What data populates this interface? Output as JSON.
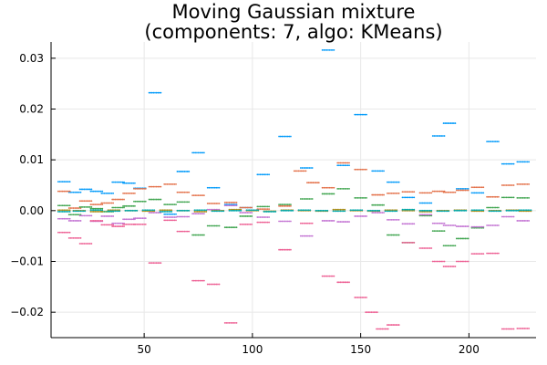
{
  "chart_data": {
    "type": "scatter",
    "title": "Moving Gaussian mixture\n(components: 7, algo: KMeans)",
    "title_lines": [
      "Moving Gaussian mixture",
      "(components: 7, algo: KMeans)"
    ],
    "xlabel": "",
    "ylabel": "",
    "xlim": [
      7,
      231
    ],
    "ylim": [
      -0.025,
      0.0332
    ],
    "xticks": [
      50,
      100,
      150,
      200
    ],
    "xtick_labels": [
      "50",
      "100",
      "150",
      "200"
    ],
    "yticks": [
      -0.02,
      -0.01,
      0.0,
      0.01,
      0.02,
      0.03
    ],
    "ytick_labels": [
      "−0.02",
      "−0.01",
      "0.00",
      "0.01",
      "0.02",
      "0.03"
    ],
    "grid": true,
    "legend": false,
    "marker": "small dot",
    "series": [
      {
        "color": "#009AFA",
        "points": [
          [
            13,
            0.0057
          ],
          [
            18,
            0.0036
          ],
          [
            23,
            0.0042
          ],
          [
            28,
            0.0038
          ],
          [
            33,
            0.0034
          ],
          [
            38,
            0.0056
          ],
          [
            43,
            0.0054
          ],
          [
            48,
            0.0044
          ],
          [
            55,
            0.0232
          ],
          [
            62,
            -0.0007
          ],
          [
            68,
            0.0077
          ],
          [
            75,
            0.0114
          ],
          [
            82,
            0.0045
          ],
          [
            90,
            0.0012
          ],
          [
            97,
            0.0006
          ],
          [
            105,
            0.0071
          ],
          [
            115,
            0.0146
          ],
          [
            125,
            0.0084
          ],
          [
            135,
            0.0316
          ],
          [
            142,
            0.0089
          ],
          [
            150,
            0.0189
          ],
          [
            158,
            0.0078
          ],
          [
            165,
            0.0056
          ],
          [
            172,
            0.0026
          ],
          [
            180,
            0.0015
          ],
          [
            186,
            0.0147
          ],
          [
            191,
            0.0172
          ],
          [
            197,
            0.0043
          ],
          [
            204,
            0.0035
          ],
          [
            211,
            0.0136
          ],
          [
            218,
            0.0092
          ],
          [
            225,
            0.0096
          ]
        ]
      },
      {
        "color": "#E36F47",
        "points": [
          [
            13,
            0.0038
          ],
          [
            18,
            0.0005
          ],
          [
            23,
            0.0019
          ],
          [
            28,
            0.0012
          ],
          [
            33,
            0.0015
          ],
          [
            38,
            0.0022
          ],
          [
            43,
            0.0034
          ],
          [
            48,
            0.0043
          ],
          [
            55,
            0.0047
          ],
          [
            62,
            0.0052
          ],
          [
            68,
            0.0036
          ],
          [
            75,
            0.003
          ],
          [
            82,
            0.0014
          ],
          [
            90,
            0.0016
          ],
          [
            97,
            0.0006
          ],
          [
            105,
            0.0003
          ],
          [
            115,
            0.0009
          ],
          [
            122,
            0.0078
          ],
          [
            128,
            0.0055
          ],
          [
            135,
            0.0045
          ],
          [
            142,
            0.0094
          ],
          [
            150,
            0.0081
          ],
          [
            158,
            0.0031
          ],
          [
            165,
            0.0034
          ],
          [
            172,
            0.0037
          ],
          [
            180,
            0.0035
          ],
          [
            186,
            0.0038
          ],
          [
            191,
            0.0036
          ],
          [
            197,
            0.004
          ],
          [
            204,
            0.0046
          ],
          [
            211,
            0.0027
          ],
          [
            218,
            0.005
          ],
          [
            225,
            0.0052
          ]
        ]
      },
      {
        "color": "#3EA44E",
        "points": [
          [
            13,
            0.001
          ],
          [
            18,
            -0.0008
          ],
          [
            23,
            0.0007
          ],
          [
            28,
            0.0004
          ],
          [
            33,
            -0.0002
          ],
          [
            38,
            0.0006
          ],
          [
            43,
            0.0009
          ],
          [
            48,
            0.0018
          ],
          [
            55,
            0.0022
          ],
          [
            62,
            0.0012
          ],
          [
            68,
            0.0017
          ],
          [
            75,
            -0.0048
          ],
          [
            82,
            -0.003
          ],
          [
            90,
            -0.0033
          ],
          [
            97,
            -0.0011
          ],
          [
            105,
            0.0008
          ],
          [
            115,
            0.0012
          ],
          [
            125,
            0.0023
          ],
          [
            135,
            0.0033
          ],
          [
            142,
            0.0043
          ],
          [
            150,
            0.0025
          ],
          [
            158,
            0.0011
          ],
          [
            165,
            -0.0048
          ],
          [
            172,
            -0.0063
          ],
          [
            180,
            -0.001
          ],
          [
            186,
            -0.004
          ],
          [
            191,
            -0.0069
          ],
          [
            197,
            -0.0055
          ],
          [
            204,
            -0.0034
          ],
          [
            211,
            0.0006
          ],
          [
            218,
            0.0026
          ],
          [
            225,
            0.0025
          ]
        ]
      },
      {
        "color": "#C271D2",
        "points": [
          [
            13,
            -0.0016
          ],
          [
            18,
            -0.002
          ],
          [
            23,
            -0.001
          ],
          [
            28,
            -0.0021
          ],
          [
            33,
            -0.0011
          ],
          [
            38,
            -0.0025
          ],
          [
            43,
            -0.0017
          ],
          [
            48,
            -0.0015
          ],
          [
            55,
            -0.0004
          ],
          [
            62,
            -0.0013
          ],
          [
            68,
            -0.0012
          ],
          [
            75,
            -0.0006
          ],
          [
            82,
            0.0002
          ],
          [
            90,
            0.001
          ],
          [
            97,
            -0.0004
          ],
          [
            105,
            -0.0013
          ],
          [
            115,
            -0.0021
          ],
          [
            125,
            -0.005
          ],
          [
            135,
            -0.002
          ],
          [
            142,
            -0.0022
          ],
          [
            150,
            -0.0011
          ],
          [
            158,
            -0.0004
          ],
          [
            165,
            -0.0018
          ],
          [
            172,
            -0.0026
          ],
          [
            180,
            -0.0008
          ],
          [
            186,
            -0.0025
          ],
          [
            191,
            -0.0029
          ],
          [
            197,
            -0.0031
          ],
          [
            204,
            -0.0032
          ],
          [
            211,
            -0.0029
          ],
          [
            218,
            -0.0012
          ],
          [
            225,
            -0.002
          ]
        ]
      },
      {
        "color": "#AC8E18",
        "points": [
          [
            13,
            0.0001
          ],
          [
            20,
            0.0
          ],
          [
            28,
            -0.0002
          ],
          [
            36,
            0.0001
          ],
          [
            44,
            0.0
          ],
          [
            52,
            -0.0001
          ],
          [
            60,
            0.0001
          ],
          [
            68,
            0.0
          ],
          [
            76,
            -0.0002
          ],
          [
            84,
            0.0
          ],
          [
            92,
            0.0002
          ],
          [
            100,
            0.0
          ],
          [
            108,
            -0.0001
          ],
          [
            116,
            0.0001
          ],
          [
            124,
            0.0
          ],
          [
            132,
            -0.0001
          ],
          [
            140,
            0.0002
          ],
          [
            148,
            0.0
          ],
          [
            156,
            -0.0001
          ],
          [
            164,
            0.0001
          ],
          [
            172,
            0.0
          ],
          [
            180,
            -0.0002
          ],
          [
            188,
            0.0
          ],
          [
            196,
            0.0001
          ],
          [
            204,
            -0.0001
          ],
          [
            212,
            0.0
          ],
          [
            220,
            0.0001
          ],
          [
            226,
            -0.0001
          ]
        ]
      },
      {
        "color": "#00A9AD",
        "points": [
          [
            13,
            -0.0002
          ],
          [
            20,
            -0.0001
          ],
          [
            28,
            0.0001
          ],
          [
            36,
            -0.0001
          ],
          [
            44,
            0.0
          ],
          [
            52,
            0.0001
          ],
          [
            60,
            -0.0002
          ],
          [
            68,
            0.0
          ],
          [
            76,
            0.0001
          ],
          [
            84,
            -0.0001
          ],
          [
            92,
            0.0
          ],
          [
            100,
            0.0001
          ],
          [
            108,
            -0.0002
          ],
          [
            116,
            0.0
          ],
          [
            124,
            0.0001
          ],
          [
            132,
            0.0
          ],
          [
            140,
            -0.0001
          ],
          [
            148,
            0.0001
          ],
          [
            156,
            0.0
          ],
          [
            164,
            -0.0001
          ],
          [
            172,
            0.0002
          ],
          [
            180,
            0.0
          ],
          [
            188,
            -0.0001
          ],
          [
            196,
            0.0
          ],
          [
            204,
            0.0001
          ],
          [
            212,
            -0.0001
          ],
          [
            220,
            0.0
          ],
          [
            226,
            0.0001
          ]
        ]
      },
      {
        "color": "#ED5D92",
        "points": [
          [
            13,
            -0.0043
          ],
          [
            18,
            -0.0054
          ],
          [
            23,
            -0.0065
          ],
          [
            28,
            -0.002
          ],
          [
            33,
            -0.0028
          ],
          [
            38,
            -0.0031
          ],
          [
            43,
            -0.0027
          ],
          [
            48,
            -0.0027
          ],
          [
            55,
            -0.0103
          ],
          [
            62,
            -0.0019
          ],
          [
            68,
            -0.0041
          ],
          [
            75,
            -0.0138
          ],
          [
            82,
            -0.0145
          ],
          [
            90,
            -0.0221
          ],
          [
            97,
            -0.0027
          ],
          [
            105,
            -0.0023
          ],
          [
            115,
            -0.0077
          ],
          [
            125,
            -0.0025
          ],
          [
            135,
            -0.0129
          ],
          [
            142,
            -0.0141
          ],
          [
            150,
            -0.0171
          ],
          [
            155,
            -0.02
          ],
          [
            160,
            -0.0233
          ],
          [
            165,
            -0.0225
          ],
          [
            172,
            -0.0063
          ],
          [
            180,
            -0.0074
          ],
          [
            186,
            -0.01
          ],
          [
            191,
            -0.011
          ],
          [
            197,
            -0.01
          ],
          [
            204,
            -0.0085
          ],
          [
            211,
            -0.0084
          ],
          [
            218,
            -0.0233
          ],
          [
            225,
            -0.0232
          ]
        ]
      }
    ]
  }
}
